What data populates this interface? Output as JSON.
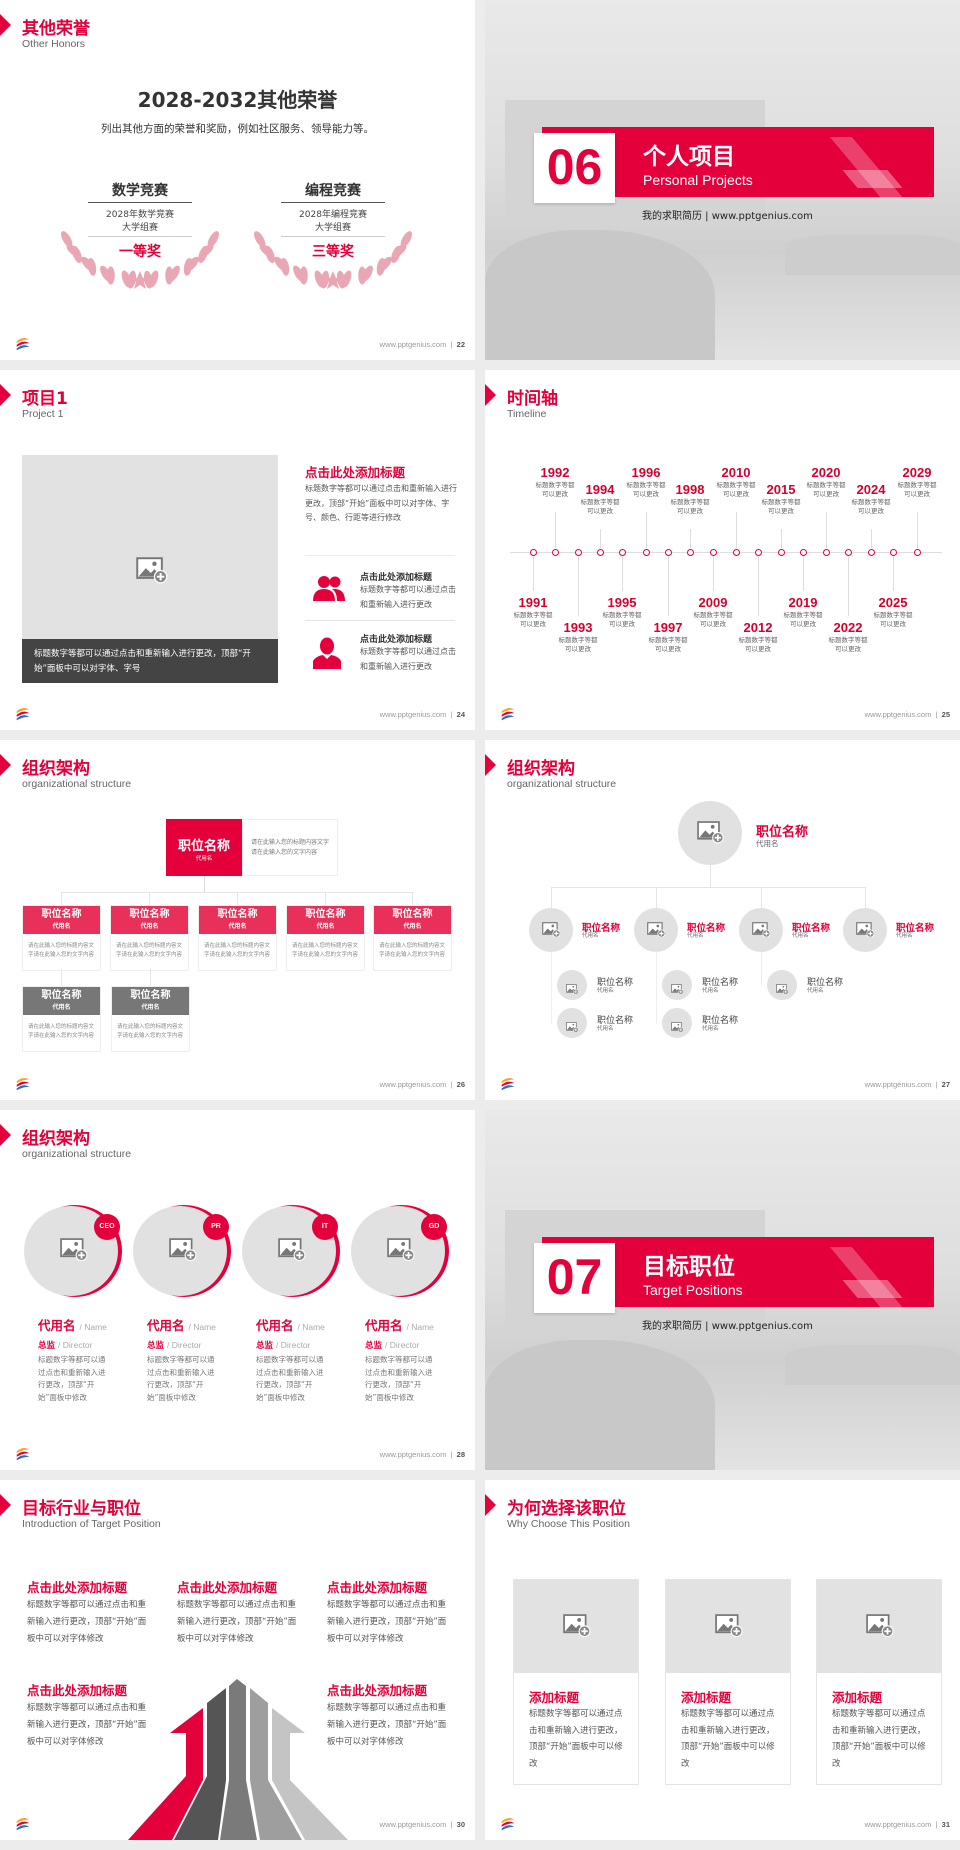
{
  "brand": {
    "accent": "#e4003a",
    "footer_url": "www.pptgenius.com"
  },
  "s22": {
    "page": "22",
    "title": "其他荣誉",
    "subtitle": "Other Honors",
    "heading": "2028-2032其他荣誉",
    "description": "列出其他方面的荣誉和奖励，例如社区服务、领导能力等。",
    "awards": [
      {
        "name": "数学竞赛",
        "detail_1": "2028年数学竞赛",
        "detail_2": "大学组赛",
        "prize": "一等奖"
      },
      {
        "name": "编程竞赛",
        "detail_1": "2028年编程竞赛",
        "detail_2": "大学组赛",
        "prize": "三等奖"
      }
    ]
  },
  "s06": {
    "number": "06",
    "title": "个人项目",
    "subtitle": "Personal Projects",
    "tagline": "我的求职简历 | www.pptgenius.com"
  },
  "s24": {
    "page": "24",
    "title": "项目1",
    "subtitle": "Project 1",
    "caption": "标题数字等都可以通过点击和重新输入进行更改，顶部“开始”面板中可以对字体、字号",
    "main_title": "点击此处添加标题",
    "main_text": "标题数字等都可以通过点击和重新输入进行更改，顶部“开始”面板中可以对字体、字号、颜色、行距等进行修改",
    "items": [
      {
        "icon": "group-icon",
        "title": "点击此处添加标题",
        "text": "标题数字等都可以通过点击和重新输入进行更改"
      },
      {
        "icon": "person-icon",
        "title": "点击此处添加标题",
        "text": "标题数字等都可以通过点击和重新输入进行更改"
      }
    ]
  },
  "s25": {
    "page": "25",
    "title": "时间轴",
    "subtitle": "Timeline",
    "caption": "标题数字等都可以更改",
    "events": [
      "1991",
      "1992",
      "1993",
      "1994",
      "1995",
      "1996",
      "1997",
      "1998",
      "2009",
      "2010",
      "2012",
      "2015",
      "2019",
      "2020",
      "2022",
      "2024",
      "2025",
      "2029"
    ]
  },
  "s26": {
    "page": "26",
    "title": "组织架构",
    "subtitle": "organizational structure",
    "top": {
      "title": "职位名称",
      "code": "代用名",
      "text": "请在此输入您的标题内容文字请在此输入您的文字内容"
    },
    "row1": [
      {
        "title": "职位名称",
        "code": "代用名",
        "text": "请在此输入您的标题内容文字请在此输入您的文字内容"
      },
      {
        "title": "职位名称",
        "code": "代用名",
        "text": "请在此输入您的标题内容文字请在此输入您的文字内容"
      },
      {
        "title": "职位名称",
        "code": "代用名",
        "text": "请在此输入您的标题内容文字请在此输入您的文字内容"
      },
      {
        "title": "职位名称",
        "code": "代用名",
        "text": "请在此输入您的标题内容文字请在此输入您的文字内容"
      },
      {
        "title": "职位名称",
        "code": "代用名",
        "text": "请在此输入您的标题内容文字请在此输入您的文字内容"
      }
    ],
    "row2": [
      {
        "title": "职位名称",
        "code": "代用名",
        "text": "请在此输入您的标题内容文字请在此输入您的文字内容"
      },
      {
        "title": "职位名称",
        "code": "代用名",
        "text": "请在此输入您的标题内容文字请在此输入您的文字内容"
      }
    ]
  },
  "s27": {
    "page": "27",
    "title": "组织架构",
    "subtitle": "organizational structure",
    "top": {
      "title": "职位名称",
      "code": "代用名"
    },
    "level2": [
      {
        "title": "职位名称",
        "code": "代用名"
      },
      {
        "title": "职位名称",
        "code": "代用名"
      },
      {
        "title": "职位名称",
        "code": "代用名"
      },
      {
        "title": "职位名称",
        "code": "代用名"
      }
    ],
    "level3": [
      {
        "title": "职位名称",
        "code": "代用名"
      },
      {
        "title": "职位名称",
        "code": "代用名"
      },
      {
        "title": "职位名称",
        "code": "代用名"
      },
      {
        "title": "职位名称",
        "code": "代用名"
      },
      {
        "title": "职位名称",
        "code": "代用名"
      }
    ]
  },
  "s28": {
    "page": "28",
    "title": "组织架构",
    "subtitle": "organizational structure",
    "members": [
      {
        "badge": "CEO",
        "name": "代用名",
        "name_en": "/ Name",
        "role": "总监",
        "role_en": "/  Director",
        "text": "标题数字等都可以通过点击和重新输入进行更改，顶部“开始”面板中修改"
      },
      {
        "badge": "PR",
        "name": "代用名",
        "name_en": "/ Name",
        "role": "总监",
        "role_en": "/  Director",
        "text": "标题数字等都可以通过点击和重新输入进行更改，顶部“开始”面板中修改"
      },
      {
        "badge": "IT",
        "name": "代用名",
        "name_en": "/ Name",
        "role": "总监",
        "role_en": "/  Director",
        "text": "标题数字等都可以通过点击和重新输入进行更改，顶部“开始”面板中修改"
      },
      {
        "badge": "GD",
        "name": "代用名",
        "name_en": "/ Name",
        "role": "总监",
        "role_en": "/  Director",
        "text": "标题数字等都可以通过点击和重新输入进行更改，顶部“开始”面板中修改"
      }
    ]
  },
  "s07": {
    "number": "07",
    "title": "目标职位",
    "subtitle": "Target Positions",
    "tagline": "我的求职简历 | www.pptgenius.com"
  },
  "s30": {
    "page": "30",
    "title": "目标行业与职位",
    "subtitle": "Introduction of Target Position",
    "blocks": [
      {
        "title": "点击此处添加标题",
        "text": "标题数字等都可以通过点击和重新输入进行更改，顶部“开始”面板中可以对字体修改"
      },
      {
        "title": "点击此处添加标题",
        "text": "标题数字等都可以通过点击和重新输入进行更改，顶部“开始”面板中可以对字体修改"
      },
      {
        "title": "点击此处添加标题",
        "text": "标题数字等都可以通过点击和重新输入进行更改，顶部“开始”面板中可以对字体修改"
      },
      {
        "title": "点击此处添加标题",
        "text": "标题数字等都可以通过点击和重新输入进行更改，顶部“开始”面板中可以对字体修改"
      },
      {
        "title": "点击此处添加标题",
        "text": "标题数字等都可以通过点击和重新输入进行更改，顶部“开始”面板中可以对字体修改"
      }
    ]
  },
  "s31": {
    "page": "31",
    "title": "为何选择该职位",
    "subtitle": "Why Choose This Position",
    "cards": [
      {
        "title": "添加标题",
        "text": "标题数字等都可以通过点击和重新输入进行更改，顶部“开始”面板中可以修改"
      },
      {
        "title": "添加标题",
        "text": "标题数字等都可以通过点击和重新输入进行更改，顶部“开始”面板中可以修改"
      },
      {
        "title": "添加标题",
        "text": "标题数字等都可以通过点击和重新输入进行更改，顶部“开始”面板中可以修改"
      }
    ]
  }
}
